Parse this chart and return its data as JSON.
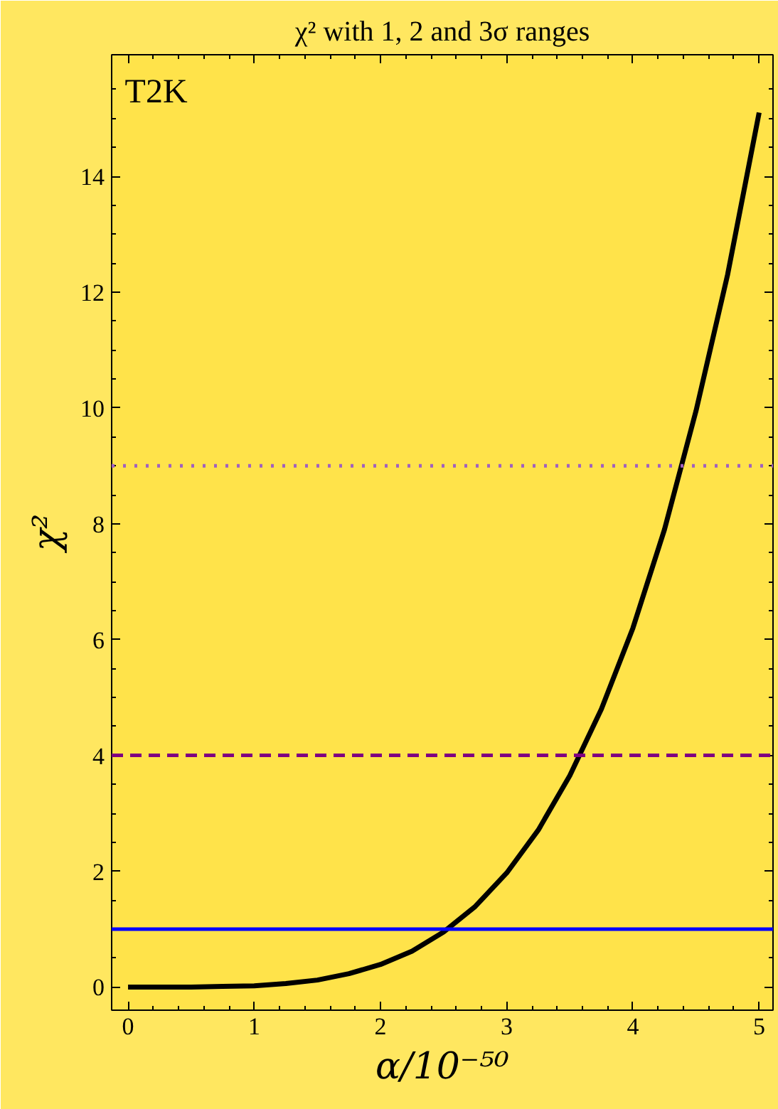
{
  "chart_data": {
    "type": "line",
    "title": "χ² with 1, 2 and 3σ ranges",
    "xlabel": "α/10⁻⁵⁰",
    "ylabel": "χ²",
    "annotations": [
      "T2K"
    ],
    "x": [
      0,
      0.25,
      0.5,
      0.75,
      1,
      1.25,
      1.5,
      1.75,
      2,
      2.25,
      2.5,
      2.75,
      3,
      3.25,
      3.5,
      3.75,
      4,
      4.25,
      4.5,
      4.75,
      5
    ],
    "series": [
      {
        "color": "#000000",
        "values": [
          0,
          0.0,
          0.0,
          0.01,
          0.02,
          0.06,
          0.12,
          0.23,
          0.39,
          0.62,
          0.95,
          1.39,
          1.97,
          2.71,
          3.65,
          4.8,
          6.2,
          7.9,
          9.95,
          12.3,
          15.1
        ]
      }
    ],
    "xlim": [
      -0.13,
      5.11
    ],
    "ylim": [
      -0.4,
      16.1
    ],
    "xticks": [
      0,
      1,
      2,
      3,
      4,
      5
    ],
    "yticks": [
      0,
      2,
      4,
      6,
      8,
      10,
      12,
      14
    ],
    "ref_lines": [
      {
        "axis": "y",
        "value": 1,
        "color": "#0000ff",
        "line_style": "solid"
      },
      {
        "axis": "y",
        "value": 4,
        "color": "#800080",
        "line_style": "dashed"
      },
      {
        "axis": "y",
        "value": 9,
        "color": "#a060c0",
        "line_style": "dotted"
      }
    ],
    "marker": "none",
    "line_style": "solid"
  }
}
